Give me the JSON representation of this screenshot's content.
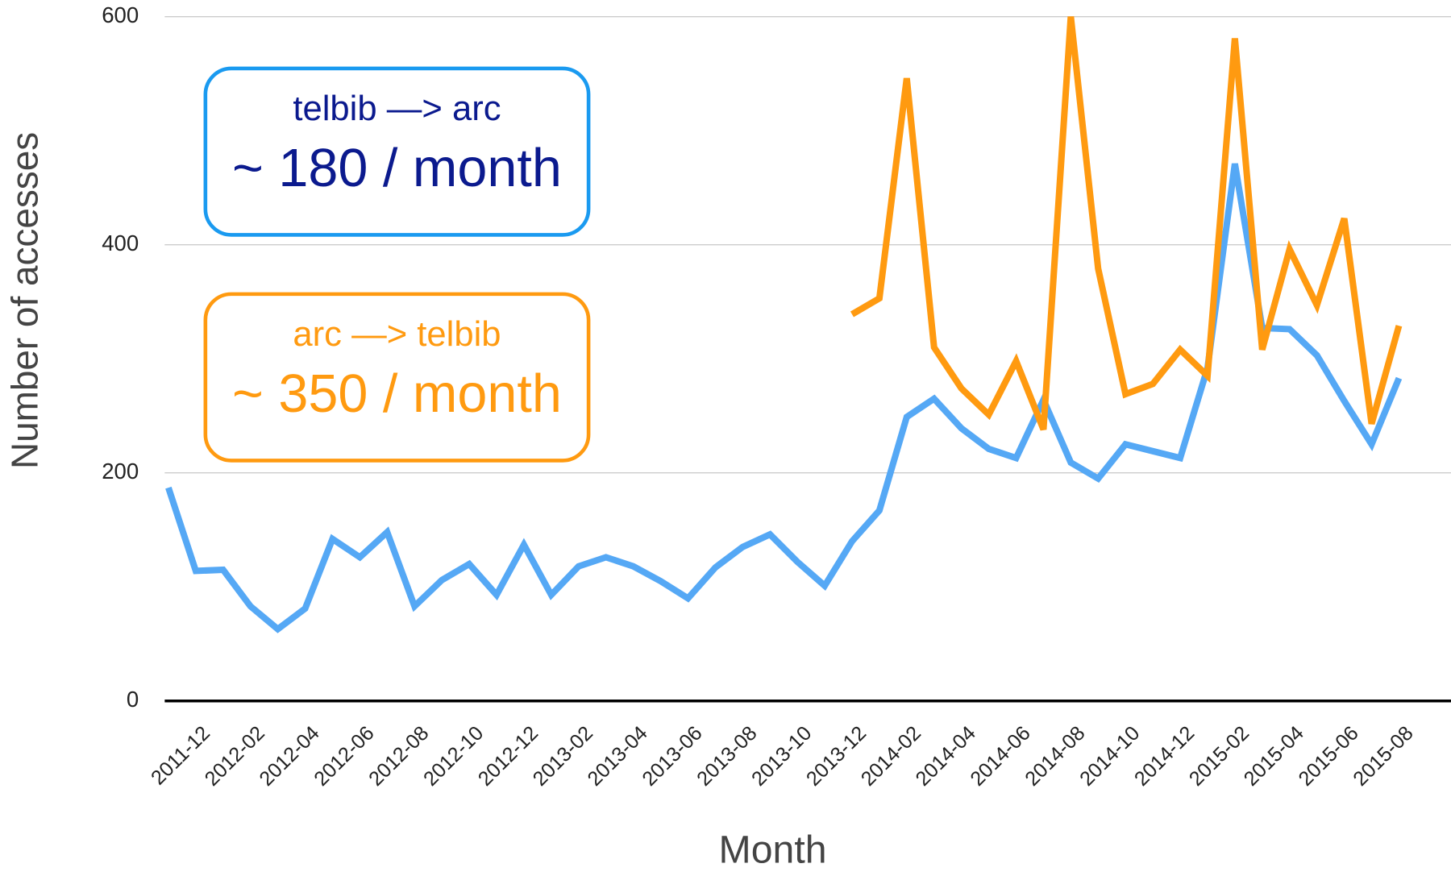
{
  "chart_data": {
    "type": "line",
    "x_label": "Month",
    "y_label": "Number of accesses",
    "categories": [
      "2011-12",
      null,
      "2012-02",
      null,
      "2012-04",
      null,
      "2012-06",
      null,
      "2012-08",
      null,
      "2012-10",
      null,
      "2012-12",
      null,
      "2013-02",
      null,
      "2013-04",
      null,
      "2013-06",
      null,
      "2013-08",
      null,
      "2013-10",
      null,
      "2013-12",
      null,
      "2014-02",
      null,
      "2014-04",
      null,
      "2014-06",
      null,
      "2014-08",
      null,
      "2014-10",
      null,
      "2014-12",
      null,
      "2015-02",
      null,
      "2015-04",
      null,
      "2015-06",
      null,
      "2015-08",
      null
    ],
    "series": [
      {
        "name": "telbib —> arc",
        "color": "#55a8f5",
        "values": [
          187,
          114,
          115,
          83,
          63,
          81,
          142,
          126,
          148,
          83,
          106,
          120,
          93,
          137,
          93,
          118,
          126,
          118,
          105,
          90,
          117,
          135,
          146,
          122,
          101,
          140,
          167,
          249,
          265,
          239,
          221,
          213,
          264,
          209,
          195,
          225,
          219,
          213,
          292,
          471,
          327,
          326,
          303,
          263,
          225,
          283
        ]
      },
      {
        "name": "arc —> telbib",
        "color": "#ff9a10",
        "values": [
          null,
          null,
          null,
          null,
          null,
          null,
          null,
          null,
          null,
          null,
          null,
          null,
          null,
          null,
          null,
          null,
          null,
          null,
          null,
          null,
          null,
          null,
          null,
          null,
          null,
          339,
          353,
          546,
          310,
          274,
          251,
          298,
          238,
          600,
          379,
          269,
          278,
          308,
          285,
          581,
          308,
          396,
          347,
          423,
          243,
          329
        ]
      }
    ],
    "annotations": [
      {
        "title": "telbib —> arc",
        "text": "~ 180 / month",
        "color": "#0b1a8e",
        "border": "#1a9af0"
      },
      {
        "title": "arc —> telbib",
        "text": "~ 350 / month",
        "color": "#ff9a10",
        "border": "#ff9a10"
      }
    ],
    "ylim": [
      0,
      600
    ],
    "yticks": [
      0,
      200,
      400,
      600
    ],
    "grid": true
  }
}
